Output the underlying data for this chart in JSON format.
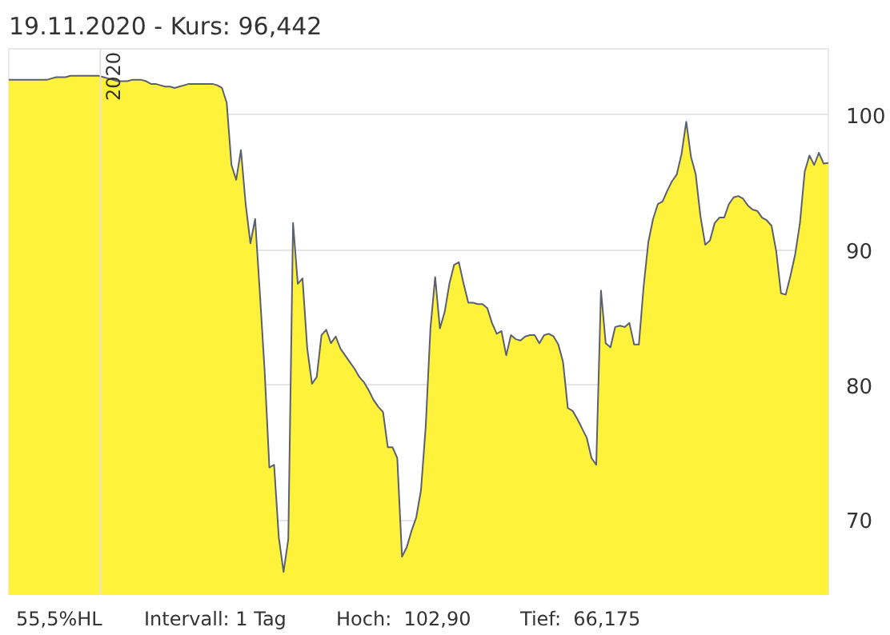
{
  "chart_data": {
    "type": "area",
    "title": "19.11.2020  - Kurs: 96,442",
    "annotations": [
      "2020",
      "55,5%HL",
      "Intervall: 1 Tag",
      "Hoch:  102,90",
      "Tief:  66,175"
    ],
    "categories": [
      null,
      null,
      null,
      null,
      null,
      null,
      null,
      null,
      null,
      null,
      null,
      null,
      null,
      null,
      null,
      null,
      null,
      null,
      null,
      null,
      null,
      null,
      null,
      null,
      null,
      null,
      null,
      null,
      null,
      null,
      null,
      null,
      null,
      null,
      null,
      null,
      null,
      null,
      null,
      null,
      null,
      null,
      null,
      null,
      null,
      null,
      null,
      null,
      null,
      null,
      null,
      null,
      null,
      null,
      null,
      null,
      null,
      null,
      null,
      null,
      null,
      null,
      null,
      null,
      null,
      null,
      null,
      null,
      null,
      null,
      null,
      null,
      null,
      null,
      null,
      null,
      null,
      null,
      null,
      null,
      null,
      null,
      null,
      null,
      null,
      null,
      null,
      null,
      null,
      null,
      null,
      null,
      null,
      null,
      null,
      null,
      null,
      null,
      null,
      null,
      null,
      null,
      null,
      null,
      null,
      null,
      null,
      null,
      null,
      null,
      null,
      null,
      null,
      null,
      null,
      null,
      null,
      null,
      null,
      null,
      null,
      null,
      null,
      null,
      null,
      null,
      null,
      null,
      null,
      null,
      null,
      null,
      null,
      null,
      null,
      null,
      null,
      null,
      null,
      null,
      null,
      null,
      null,
      null,
      null,
      null,
      null,
      null,
      null,
      null,
      null,
      null,
      null,
      null,
      null,
      null,
      null,
      null,
      null,
      null,
      null,
      null,
      null,
      null,
      null,
      null,
      null,
      null,
      null,
      null,
      null,
      null,
      null,
      null
    ],
    "series": [
      {
        "color": "#fff23a",
        "values": [
          102.6,
          102.6,
          102.6,
          102.6,
          102.6,
          102.6,
          102.6,
          102.6,
          102.6,
          102.7,
          102.8,
          102.8,
          102.8,
          102.9,
          102.9,
          102.9,
          102.9,
          102.9,
          102.9,
          102.9,
          102.8,
          102.7,
          102.6,
          102.5,
          102.5,
          102.5,
          102.6,
          102.6,
          102.6,
          102.5,
          102.3,
          102.3,
          102.2,
          102.1,
          102.1,
          102.0,
          102.1,
          102.2,
          102.3,
          102.3,
          102.3,
          102.3,
          102.3,
          102.3,
          102.2,
          102.0,
          100.9,
          96.3,
          95.2,
          97.4,
          93.4,
          90.5,
          92.3,
          86.8,
          81.1,
          73.9,
          74.1,
          68.7,
          66.175,
          68.6,
          92.0,
          87.5,
          87.9,
          82.7,
          80.1,
          80.6,
          83.7,
          84.1,
          83.1,
          83.6,
          82.7,
          82.2,
          81.7,
          81.2,
          80.6,
          80.2,
          79.6,
          78.9,
          78.4,
          78.0,
          75.4,
          75.4,
          74.6,
          67.3,
          68.0,
          69.2,
          70.2,
          72.2,
          76.9,
          84.2,
          88.0,
          84.2,
          85.4,
          87.5,
          88.9,
          89.1,
          87.5,
          86.1,
          86.1,
          86.0,
          86.0,
          85.7,
          84.6,
          83.8,
          84.0,
          82.2,
          83.7,
          83.4,
          83.3,
          83.6,
          83.7,
          83.7,
          83.1,
          83.7,
          83.8,
          83.6,
          83.0,
          81.7,
          78.3,
          78.1,
          77.5,
          76.8,
          76.1,
          74.6,
          74.1,
          87.0,
          83.1,
          82.8,
          84.3,
          84.4,
          84.3,
          84.6,
          83.0,
          83.0,
          87.3,
          90.6,
          92.3,
          93.4,
          93.6,
          94.4,
          95.1,
          95.6,
          97.1,
          99.5,
          96.9,
          95.6,
          92.5,
          90.4,
          90.7,
          92.0,
          92.4,
          92.4,
          93.4,
          93.9,
          94.0,
          93.8,
          93.3,
          93.0,
          92.9,
          92.4,
          92.2,
          91.8,
          89.9,
          86.8,
          86.7,
          88.1,
          89.7,
          92.0,
          95.8,
          97.0,
          96.3,
          97.2,
          96.4,
          96.442
        ]
      }
    ],
    "ylim": [
      64.4,
      104.9
    ],
    "yticks": [
      70,
      80,
      90,
      100
    ],
    "grid": "y"
  }
}
